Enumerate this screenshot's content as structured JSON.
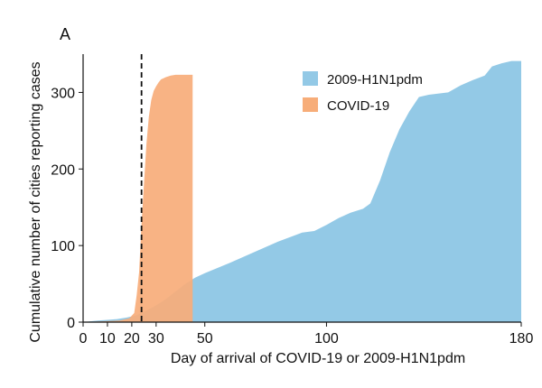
{
  "chart_data": {
    "type": "area",
    "panel_label": "A",
    "title": "",
    "xlabel": "Day of arrival of COVID-19 or 2009-H1N1pdm",
    "ylabel": "Cumulative number of cities reporting cases",
    "xlim": [
      0,
      180
    ],
    "ylim": [
      0,
      350
    ],
    "x_ticks": [
      0,
      10,
      20,
      30,
      50,
      100,
      180
    ],
    "y_ticks": [
      0,
      100,
      200,
      300
    ],
    "x_tick_labels": [
      "0",
      "10",
      "20",
      "30",
      "50",
      "100",
      "180"
    ],
    "y_tick_labels": [
      "0",
      "100",
      "200",
      "300"
    ],
    "reference_line": {
      "x": 24,
      "style": "dashed"
    },
    "legend": {
      "position": "top-right"
    },
    "series": [
      {
        "name": "2009-H1N1pdm",
        "color": "#93c9e6",
        "points": [
          [
            0,
            0
          ],
          [
            3,
            1
          ],
          [
            6,
            2
          ],
          [
            10,
            3
          ],
          [
            14,
            4
          ],
          [
            18,
            6
          ],
          [
            22,
            9
          ],
          [
            26,
            15
          ],
          [
            30,
            22
          ],
          [
            34,
            30
          ],
          [
            38,
            40
          ],
          [
            42,
            50
          ],
          [
            46,
            58
          ],
          [
            50,
            64
          ],
          [
            60,
            77
          ],
          [
            70,
            91
          ],
          [
            80,
            105
          ],
          [
            90,
            117
          ],
          [
            95,
            119
          ],
          [
            100,
            127
          ],
          [
            105,
            136
          ],
          [
            110,
            143
          ],
          [
            115,
            148
          ],
          [
            118,
            155
          ],
          [
            122,
            185
          ],
          [
            126,
            222
          ],
          [
            130,
            252
          ],
          [
            134,
            275
          ],
          [
            138,
            294
          ],
          [
            142,
            297
          ],
          [
            150,
            300
          ],
          [
            155,
            309
          ],
          [
            160,
            316
          ],
          [
            165,
            322
          ],
          [
            168,
            334
          ],
          [
            172,
            338
          ],
          [
            176,
            341
          ],
          [
            180,
            341
          ]
        ]
      },
      {
        "name": "COVID-19",
        "color": "#f7ad79",
        "points": [
          [
            0,
            0
          ],
          [
            15,
            2
          ],
          [
            19,
            5
          ],
          [
            21,
            12
          ],
          [
            22,
            35
          ],
          [
            23,
            65
          ],
          [
            24,
            128
          ],
          [
            25,
            180
          ],
          [
            26,
            232
          ],
          [
            27,
            268
          ],
          [
            28,
            290
          ],
          [
            29,
            302
          ],
          [
            30,
            308
          ],
          [
            31,
            313
          ],
          [
            32,
            317
          ],
          [
            34,
            320
          ],
          [
            36,
            322
          ],
          [
            38,
            323
          ],
          [
            40,
            323
          ],
          [
            42,
            323
          ],
          [
            45,
            323
          ]
        ]
      }
    ]
  }
}
